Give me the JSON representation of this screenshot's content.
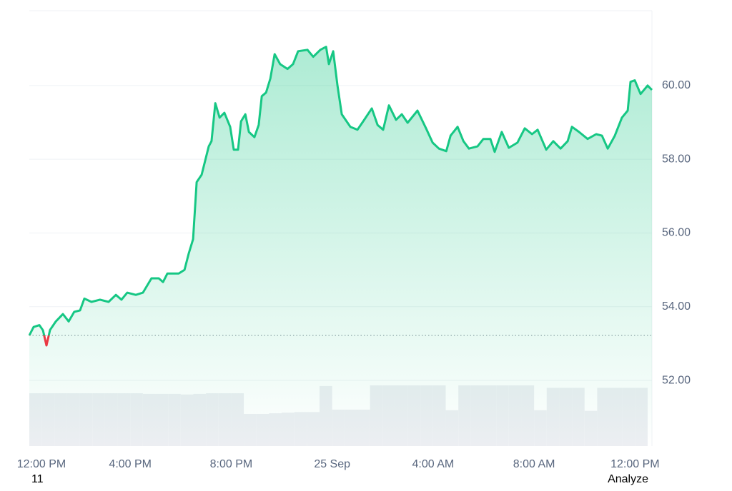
{
  "chart_data": {
    "type": "line",
    "x": [
      0,
      0.17,
      0.4,
      0.54,
      0.68,
      0.82,
      1.05,
      1.33,
      1.56,
      1.78,
      2.01,
      2.18,
      2.46,
      2.8,
      3.14,
      3.43,
      3.65,
      3.88,
      4.22,
      4.5,
      4.84,
      5.13,
      5.3,
      5.47,
      5.92,
      6.15,
      6.32,
      6.49,
      6.63,
      6.83,
      7.11,
      7.22,
      7.37,
      7.54,
      7.73,
      7.96,
      8.1,
      8.27,
      8.39,
      8.56,
      8.7,
      8.92,
      9.09,
      9.21,
      9.38,
      9.55,
      9.72,
      9.94,
      10.23,
      10.45,
      10.65,
      11.02,
      11.25,
      11.53,
      11.76,
      11.87,
      12.04,
      12.21,
      12.38,
      12.72,
      13.0,
      13.23,
      13.57,
      13.8,
      14.02,
      14.25,
      14.53,
      14.76,
      14.99,
      15.38,
      15.72,
      15.98,
      16.23,
      16.52,
      16.69,
      16.97,
      17.2,
      17.42,
      17.76,
      17.99,
      18.27,
      18.44,
      18.72,
      19.0,
      19.34,
      19.63,
      19.92,
      20.14,
      20.48,
      20.76,
      21.05,
      21.33,
      21.5,
      21.78,
      22.12,
      22.46,
      22.69,
      22.92,
      23.2,
      23.48,
      23.71,
      23.82,
      23.99,
      24.22,
      24.5,
      24.67
    ],
    "values": [
      53.22,
      53.45,
      53.5,
      53.36,
      52.95,
      53.37,
      53.6,
      53.8,
      53.6,
      53.86,
      53.9,
      54.22,
      54.13,
      54.19,
      54.13,
      54.32,
      54.19,
      54.38,
      54.32,
      54.38,
      54.77,
      54.77,
      54.67,
      54.9,
      54.9,
      55.0,
      55.45,
      55.83,
      57.38,
      57.58,
      58.35,
      58.49,
      59.52,
      59.13,
      59.26,
      58.88,
      58.26,
      58.26,
      59.03,
      59.22,
      58.74,
      58.6,
      58.93,
      59.71,
      59.81,
      60.19,
      60.85,
      60.58,
      60.45,
      60.58,
      60.93,
      60.97,
      60.78,
      60.97,
      61.05,
      60.58,
      60.93,
      60.0,
      59.22,
      58.88,
      58.8,
      59.03,
      59.38,
      58.93,
      58.8,
      59.46,
      59.07,
      59.22,
      58.99,
      59.32,
      58.84,
      58.45,
      58.29,
      58.22,
      58.64,
      58.88,
      58.49,
      58.29,
      58.35,
      58.55,
      58.55,
      58.2,
      58.74,
      58.31,
      58.45,
      58.84,
      58.68,
      58.8,
      58.26,
      58.49,
      58.29,
      58.49,
      58.88,
      58.74,
      58.55,
      58.68,
      58.64,
      58.29,
      58.64,
      59.13,
      59.32,
      60.1,
      60.14,
      59.77,
      60.0,
      59.88
    ],
    "baseline": 53.22,
    "color": "#16c784",
    "down_color": "#ea3943",
    "volume": {
      "color": "#eceef2",
      "ylim": [
        0,
        100
      ],
      "x": [
        0.25,
        0.75,
        1.25,
        1.75,
        2.25,
        2.75,
        3.25,
        3.75,
        4.25,
        4.75,
        5.25,
        5.75,
        6.25,
        6.75,
        7.25,
        7.75,
        8.25,
        8.75,
        9.25,
        9.75,
        10.25,
        10.75,
        11.25,
        11.75,
        12.25,
        12.75,
        13.25,
        13.75,
        14.25,
        14.75,
        15.25,
        15.75,
        16.25,
        16.75,
        17.25,
        17.75,
        18.25,
        18.75,
        19.25,
        19.75,
        20.25,
        20.75,
        21.25,
        21.75,
        22.25,
        22.75,
        23.25,
        23.75,
        24.25
      ],
      "values": [
        87,
        87,
        87,
        87,
        87,
        87,
        87,
        87,
        87,
        86,
        86,
        86,
        85,
        86,
        87,
        87,
        87,
        53,
        53,
        54,
        55,
        56,
        56,
        99,
        60,
        60,
        60,
        100,
        100,
        100,
        100,
        100,
        100,
        59,
        100,
        100,
        100,
        100,
        100,
        100,
        59,
        96,
        96,
        96,
        58,
        96,
        96,
        96,
        96
      ]
    },
    "xlim": [
      0,
      24.67
    ],
    "ylim": [
      50.22,
      62.03
    ],
    "xticks": [
      {
        "value": 0,
        "label": "12:00 PM"
      },
      {
        "value": 4,
        "label": "4:00 PM"
      },
      {
        "value": 8,
        "label": "8:00 PM"
      },
      {
        "value": 12,
        "label": "25 Sep"
      },
      {
        "value": 16,
        "label": "4:00 AM"
      },
      {
        "value": 20,
        "label": "8:00 AM"
      },
      {
        "value": 24,
        "label": "12:00 PM"
      }
    ],
    "yticks": [
      {
        "value": 52,
        "label": "52.00"
      },
      {
        "value": 54,
        "label": "54.00"
      },
      {
        "value": 56,
        "label": "56.00"
      },
      {
        "value": 58,
        "label": "58.00"
      },
      {
        "value": 60,
        "label": "60.00"
      }
    ],
    "grid": true
  },
  "footer": {
    "left": "11",
    "right": "Analyze"
  }
}
